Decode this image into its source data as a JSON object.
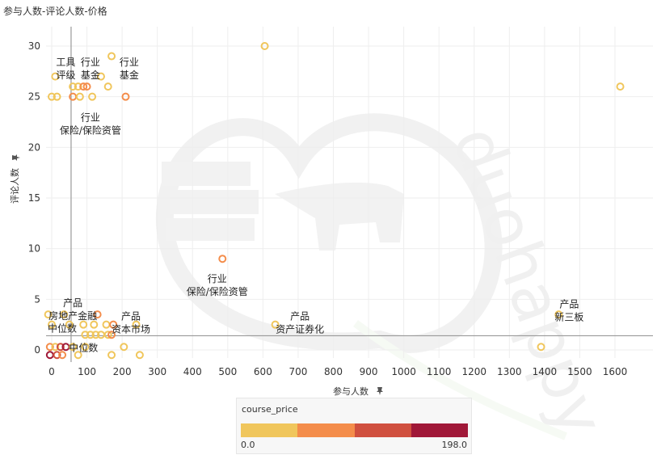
{
  "title": "参与人数-评论人数-价格",
  "colors": {
    "scale": [
      "#f0c65c",
      "#f48d4b",
      "#d0503f",
      "#a01838"
    ],
    "ref_line": "#999999",
    "grid": "#eeeeee"
  },
  "chart_data": {
    "type": "scatter",
    "xlabel": "参与人数",
    "ylabel": "评论人数",
    "pin_icon": "pin-icon",
    "xlim": [
      -10,
      1700
    ],
    "ylim": [
      -0.5,
      31
    ],
    "xticks": [
      0,
      100,
      200,
      300,
      400,
      500,
      600,
      700,
      800,
      900,
      1000,
      1100,
      1200,
      1300,
      1400,
      1500,
      1600
    ],
    "yticks": [
      0,
      5,
      10,
      15,
      20,
      25,
      30
    ],
    "reference_lines": {
      "x": 55,
      "y": 1.4
    },
    "color_field": "course_price",
    "color_range": [
      "0.0",
      "198.0"
    ],
    "points": [
      {
        "x": 605,
        "y": 30,
        "price": 0
      },
      {
        "x": 170,
        "y": 29,
        "price": 0
      },
      {
        "x": 10,
        "y": 27,
        "price": 0
      },
      {
        "x": 140,
        "y": 27,
        "price": 0
      },
      {
        "x": 60,
        "y": 26,
        "price": 0
      },
      {
        "x": 75,
        "y": 26,
        "price": 20
      },
      {
        "x": 90,
        "y": 26,
        "price": 60
      },
      {
        "x": 100,
        "y": 26,
        "price": 80
      },
      {
        "x": 160,
        "y": 26,
        "price": 0
      },
      {
        "x": 1615,
        "y": 26,
        "price": 0
      },
      {
        "x": 0,
        "y": 25,
        "price": 0
      },
      {
        "x": 15,
        "y": 25,
        "price": 30
      },
      {
        "x": 60,
        "y": 25,
        "price": 70
      },
      {
        "x": 80,
        "y": 25,
        "price": 0
      },
      {
        "x": 115,
        "y": 25,
        "price": 0
      },
      {
        "x": 210,
        "y": 25,
        "price": 90
      },
      {
        "x": 485,
        "y": 9,
        "price": 80
      },
      {
        "x": -10,
        "y": 3.5,
        "price": 40
      },
      {
        "x": 35,
        "y": 3.5,
        "price": 0
      },
      {
        "x": 130,
        "y": 3.5,
        "price": 70
      },
      {
        "x": 1440,
        "y": 3.5,
        "price": 0
      },
      {
        "x": 0,
        "y": 2.5,
        "price": 20
      },
      {
        "x": 50,
        "y": 2.5,
        "price": 0
      },
      {
        "x": 90,
        "y": 2.5,
        "price": 0
      },
      {
        "x": 120,
        "y": 2.5,
        "price": 30
      },
      {
        "x": 155,
        "y": 2.5,
        "price": 0
      },
      {
        "x": 175,
        "y": 2.5,
        "price": 80
      },
      {
        "x": 240,
        "y": 2.5,
        "price": 0
      },
      {
        "x": 635,
        "y": 2.5,
        "price": 0
      },
      {
        "x": 95,
        "y": 1.5,
        "price": 0
      },
      {
        "x": 110,
        "y": 1.5,
        "price": 0
      },
      {
        "x": 125,
        "y": 1.5,
        "price": 0
      },
      {
        "x": 140,
        "y": 1.5,
        "price": 40
      },
      {
        "x": 160,
        "y": 1.5,
        "price": 0
      },
      {
        "x": 170,
        "y": 1.5,
        "price": 60
      },
      {
        "x": -5,
        "y": 0.3,
        "price": 90
      },
      {
        "x": 10,
        "y": 0.3,
        "price": 40
      },
      {
        "x": 25,
        "y": 0.3,
        "price": 130
      },
      {
        "x": 40,
        "y": 0.3,
        "price": 198
      },
      {
        "x": 60,
        "y": 0.3,
        "price": 0
      },
      {
        "x": 95,
        "y": 0.3,
        "price": 0
      },
      {
        "x": 205,
        "y": 0.3,
        "price": 0
      },
      {
        "x": 1390,
        "y": 0.3,
        "price": 0
      },
      {
        "x": -5,
        "y": -0.5,
        "price": 198
      },
      {
        "x": 15,
        "y": -0.5,
        "price": 130
      },
      {
        "x": 30,
        "y": -0.5,
        "price": 60
      },
      {
        "x": 75,
        "y": -0.5,
        "price": 0
      },
      {
        "x": 170,
        "y": -0.5,
        "price": 30
      },
      {
        "x": 250,
        "y": -0.5,
        "price": 0
      }
    ],
    "annotations": [
      {
        "x": 40,
        "y": 28.1,
        "lines": [
          "工具",
          "评级"
        ]
      },
      {
        "x": 110,
        "y": 28.1,
        "lines": [
          "行业",
          "基金"
        ]
      },
      {
        "x": 220,
        "y": 28.1,
        "lines": [
          "行业",
          "基金"
        ]
      },
      {
        "x": 110,
        "y": 22.6,
        "lines": [
          "行业",
          "保险/保险资管"
        ]
      },
      {
        "x": 470,
        "y": 6.7,
        "lines": [
          "行业",
          "保险/保险资管"
        ]
      },
      {
        "x": 60,
        "y": 4.3,
        "lines": [
          "产品",
          "房地产金融"
        ]
      },
      {
        "x": 225,
        "y": 3.0,
        "lines": [
          "产品",
          "资本市场"
        ]
      },
      {
        "x": 705,
        "y": 3.0,
        "lines": [
          "产品",
          "资产证券化"
        ]
      },
      {
        "x": 1470,
        "y": 4.2,
        "lines": [
          "产品",
          "新三板"
        ]
      },
      {
        "x": 30,
        "y": 1.8,
        "lines": [
          "中位数"
        ]
      },
      {
        "x": 90,
        "y": -0.1,
        "lines": [
          "中位数"
        ]
      }
    ]
  },
  "legend": {
    "title": "course_price",
    "min_label": "0.0",
    "max_label": "198.0"
  }
}
